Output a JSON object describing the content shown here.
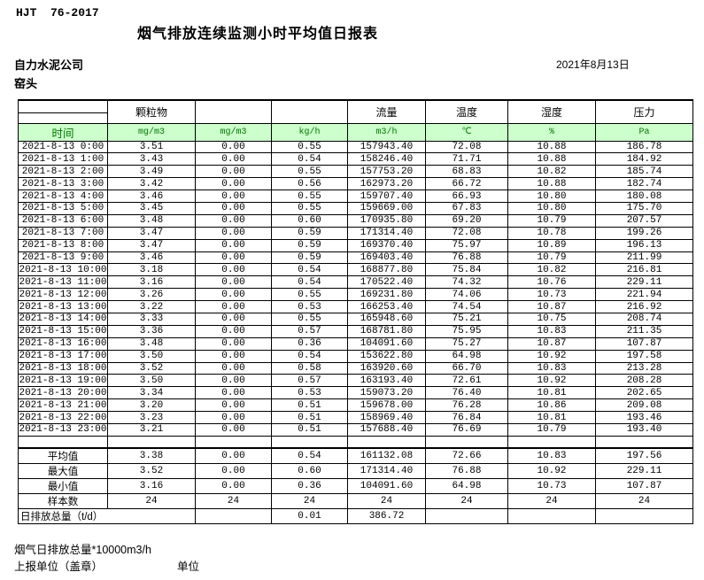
{
  "page": {
    "standard": "HJT  76-2017",
    "title": "烟气排放连续监测小时平均值日报表",
    "company": "自力水泥公司",
    "location": "窑头",
    "date": "2021年8月13日"
  },
  "colors": {
    "unit_row_bg": "#ccffcc",
    "unit_row_text": "#007700",
    "border": "#000000"
  },
  "table": {
    "time_label": "时间",
    "group_headers": {
      "particulate": "颗粒物",
      "flow": "流量",
      "temperature": "温度",
      "humidity": "湿度",
      "pressure": "压力"
    },
    "units": [
      "mg/m3",
      "mg/m3",
      "kg/h",
      "m3/h",
      "℃",
      "%",
      "Pa"
    ],
    "rows": [
      {
        "time": "2021-8-13 0:00",
        "values": [
          "3.51",
          "0.00",
          "0.55",
          "157943.40",
          "72.08",
          "10.88",
          "186.78"
        ]
      },
      {
        "time": "2021-8-13 1:00",
        "values": [
          "3.43",
          "0.00",
          "0.54",
          "158246.40",
          "71.71",
          "10.88",
          "184.92"
        ]
      },
      {
        "time": "2021-8-13 2:00",
        "values": [
          "3.49",
          "0.00",
          "0.55",
          "157753.20",
          "68.83",
          "10.82",
          "185.74"
        ]
      },
      {
        "time": "2021-8-13 3:00",
        "values": [
          "3.42",
          "0.00",
          "0.56",
          "162973.20",
          "66.72",
          "10.88",
          "182.74"
        ]
      },
      {
        "time": "2021-8-13 4:00",
        "values": [
          "3.46",
          "0.00",
          "0.55",
          "159707.40",
          "66.93",
          "10.80",
          "180.08"
        ]
      },
      {
        "time": "2021-8-13 5:00",
        "values": [
          "3.45",
          "0.00",
          "0.55",
          "159669.00",
          "67.83",
          "10.80",
          "175.70"
        ]
      },
      {
        "time": "2021-8-13 6:00",
        "values": [
          "3.48",
          "0.00",
          "0.60",
          "170935.80",
          "69.20",
          "10.79",
          "207.57"
        ]
      },
      {
        "time": "2021-8-13 7:00",
        "values": [
          "3.47",
          "0.00",
          "0.59",
          "171314.40",
          "72.08",
          "10.78",
          "199.26"
        ]
      },
      {
        "time": "2021-8-13 8:00",
        "values": [
          "3.47",
          "0.00",
          "0.59",
          "169370.40",
          "75.97",
          "10.89",
          "196.13"
        ]
      },
      {
        "time": "2021-8-13 9:00",
        "values": [
          "3.46",
          "0.00",
          "0.59",
          "169403.40",
          "76.88",
          "10.79",
          "211.99"
        ]
      },
      {
        "time": "2021-8-13 10:00",
        "values": [
          "3.18",
          "0.00",
          "0.54",
          "168877.80",
          "75.84",
          "10.82",
          "216.81"
        ]
      },
      {
        "time": "2021-8-13 11:00",
        "values": [
          "3.16",
          "0.00",
          "0.54",
          "170522.40",
          "74.32",
          "10.76",
          "229.11"
        ]
      },
      {
        "time": "2021-8-13 12:00",
        "values": [
          "3.26",
          "0.00",
          "0.55",
          "169231.80",
          "74.06",
          "10.73",
          "221.94"
        ]
      },
      {
        "time": "2021-8-13 13:00",
        "values": [
          "3.22",
          "0.00",
          "0.53",
          "166253.40",
          "74.54",
          "10.87",
          "216.92"
        ]
      },
      {
        "time": "2021-8-13 14:00",
        "values": [
          "3.33",
          "0.00",
          "0.55",
          "165948.60",
          "75.21",
          "10.75",
          "208.74"
        ]
      },
      {
        "time": "2021-8-13 15:00",
        "values": [
          "3.36",
          "0.00",
          "0.57",
          "168781.80",
          "75.95",
          "10.83",
          "211.35"
        ]
      },
      {
        "time": "2021-8-13 16:00",
        "values": [
          "3.48",
          "0.00",
          "0.36",
          "104091.60",
          "75.27",
          "10.87",
          "107.87"
        ]
      },
      {
        "time": "2021-8-13 17:00",
        "values": [
          "3.50",
          "0.00",
          "0.54",
          "153622.80",
          "64.98",
          "10.92",
          "197.58"
        ]
      },
      {
        "time": "2021-8-13 18:00",
        "values": [
          "3.52",
          "0.00",
          "0.58",
          "163920.60",
          "66.70",
          "10.83",
          "213.28"
        ]
      },
      {
        "time": "2021-8-13 19:00",
        "values": [
          "3.50",
          "0.00",
          "0.57",
          "163193.40",
          "72.61",
          "10.92",
          "208.28"
        ]
      },
      {
        "time": "2021-8-13 20:00",
        "values": [
          "3.34",
          "0.00",
          "0.53",
          "159073.20",
          "76.40",
          "10.81",
          "202.65"
        ]
      },
      {
        "time": "2021-8-13 21:00",
        "values": [
          "3.20",
          "0.00",
          "0.51",
          "159678.00",
          "76.28",
          "10.86",
          "209.08"
        ]
      },
      {
        "time": "2021-8-13 22:00",
        "values": [
          "3.23",
          "0.00",
          "0.51",
          "158969.40",
          "76.84",
          "10.81",
          "193.46"
        ]
      },
      {
        "time": "2021-8-13 23:00",
        "values": [
          "3.21",
          "0.00",
          "0.51",
          "157688.40",
          "76.69",
          "10.79",
          "193.40"
        ]
      }
    ],
    "summary": [
      {
        "label": "平均值",
        "values": [
          "3.38",
          "0.00",
          "0.54",
          "161132.08",
          "72.66",
          "10.83",
          "197.56"
        ]
      },
      {
        "label": "最大值",
        "values": [
          "3.52",
          "0.00",
          "0.60",
          "171314.40",
          "76.88",
          "10.92",
          "229.11"
        ]
      },
      {
        "label": "最小值",
        "values": [
          "3.16",
          "0.00",
          "0.36",
          "104091.60",
          "64.98",
          "10.73",
          "107.87"
        ]
      },
      {
        "label": "样本数",
        "values": [
          "24",
          "24",
          "24",
          "24",
          "24",
          "24",
          "24"
        ]
      }
    ],
    "daily_total": {
      "label": "日排放总量（t/d）",
      "kg_h": "0.01",
      "flow": "386.72"
    }
  },
  "footer": {
    "note": "烟气日排放总量*10000m3/h",
    "report_unit_label": "上报单位（盖章）",
    "unit_label": "单位"
  }
}
